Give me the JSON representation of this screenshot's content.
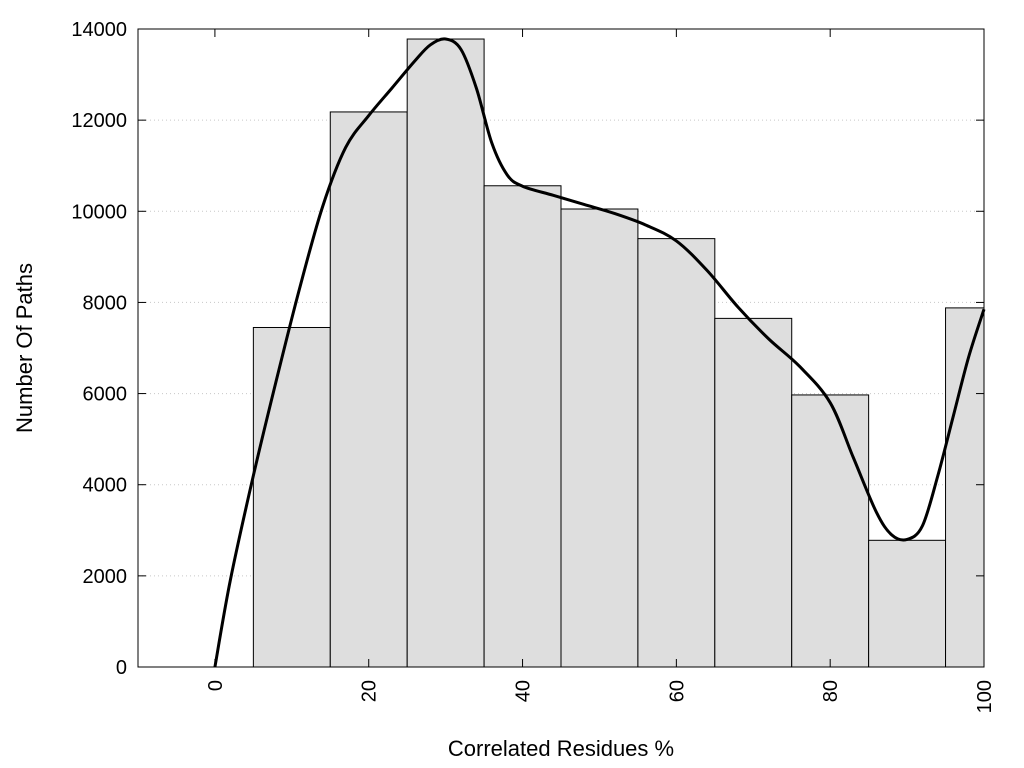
{
  "chart_data": {
    "type": "bar",
    "title": "",
    "xlabel": "Correlated Residues %",
    "ylabel": "Number Of Paths",
    "xlim": [
      -10,
      100
    ],
    "ylim": [
      0,
      14000
    ],
    "x_ticks": [
      0,
      20,
      40,
      60,
      80,
      100
    ],
    "y_ticks": [
      0,
      2000,
      4000,
      6000,
      8000,
      10000,
      12000,
      14000
    ],
    "grid": "horizontal dotted",
    "bin_width": 10,
    "bins": [
      {
        "center": 10,
        "value": 7450
      },
      {
        "center": 20,
        "value": 12180
      },
      {
        "center": 30,
        "value": 13780
      },
      {
        "center": 40,
        "value": 10560
      },
      {
        "center": 50,
        "value": 10050
      },
      {
        "center": 60,
        "value": 9400
      },
      {
        "center": 70,
        "value": 7650
      },
      {
        "center": 80,
        "value": 5970
      },
      {
        "center": 90,
        "value": 2780
      },
      {
        "center": 100,
        "value": 7880
      }
    ],
    "bar_color": "#dedede",
    "curve": {
      "type": "line",
      "color": "#000000",
      "points": [
        [
          0,
          0
        ],
        [
          2,
          1900
        ],
        [
          5,
          4200
        ],
        [
          8,
          6300
        ],
        [
          11,
          8300
        ],
        [
          14,
          10100
        ],
        [
          17,
          11400
        ],
        [
          20,
          12100
        ],
        [
          23,
          12700
        ],
        [
          26,
          13300
        ],
        [
          28,
          13650
        ],
        [
          30,
          13780
        ],
        [
          32,
          13550
        ],
        [
          34,
          12700
        ],
        [
          36,
          11500
        ],
        [
          38,
          10800
        ],
        [
          40,
          10550
        ],
        [
          44,
          10350
        ],
        [
          48,
          10150
        ],
        [
          52,
          9950
        ],
        [
          56,
          9700
        ],
        [
          60,
          9350
        ],
        [
          64,
          8700
        ],
        [
          68,
          7900
        ],
        [
          72,
          7200
        ],
        [
          76,
          6600
        ],
        [
          80,
          5800
        ],
        [
          83,
          4600
        ],
        [
          86,
          3400
        ],
        [
          88,
          2900
        ],
        [
          90,
          2800
        ],
        [
          92,
          3100
        ],
        [
          94,
          4200
        ],
        [
          96,
          5500
        ],
        [
          98,
          6800
        ],
        [
          100,
          7850
        ]
      ]
    }
  }
}
